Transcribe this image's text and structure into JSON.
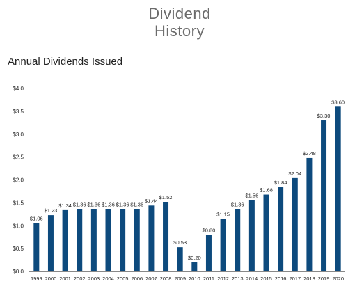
{
  "header": {
    "title_line1": "Dividend",
    "title_line2": "History"
  },
  "chart_data": {
    "type": "bar",
    "title": "Annual Dividends Issued",
    "xlabel": "",
    "ylabel": "",
    "ylim": [
      0,
      4.0
    ],
    "yticks": [
      "$0.0",
      "$0.5",
      "$1.0",
      "$1.5",
      "$2.0",
      "$2.5",
      "$3.0",
      "$3.5",
      "$4.0"
    ],
    "grid": false,
    "legend": "none",
    "bar_color": "#0d4a7d",
    "categories": [
      "1999",
      "2000",
      "2001",
      "2002",
      "2003",
      "2004",
      "2005",
      "2006",
      "2007",
      "2008",
      "2009",
      "2010",
      "2011",
      "2012",
      "2013",
      "2014",
      "2015",
      "2016",
      "2017",
      "2018",
      "2019",
      "2020"
    ],
    "values": [
      1.06,
      1.23,
      1.34,
      1.36,
      1.36,
      1.36,
      1.36,
      1.36,
      1.44,
      1.52,
      0.53,
      0.2,
      0.8,
      1.15,
      1.36,
      1.56,
      1.68,
      1.84,
      2.04,
      2.48,
      3.3,
      3.6
    ],
    "data_labels": [
      "$1.06",
      "$1.23",
      "$1.34",
      "$1.36",
      "$1.36",
      "$1.36",
      "$1.36",
      "$1.36",
      "$1.44",
      "$1.52",
      "$0.53",
      "$0.20",
      "$0.80",
      "$1.15",
      "$1.36",
      "$1.56",
      "$1.68",
      "$1.84",
      "$2.04",
      "$2.48",
      "$3.30",
      "$3.60"
    ]
  }
}
